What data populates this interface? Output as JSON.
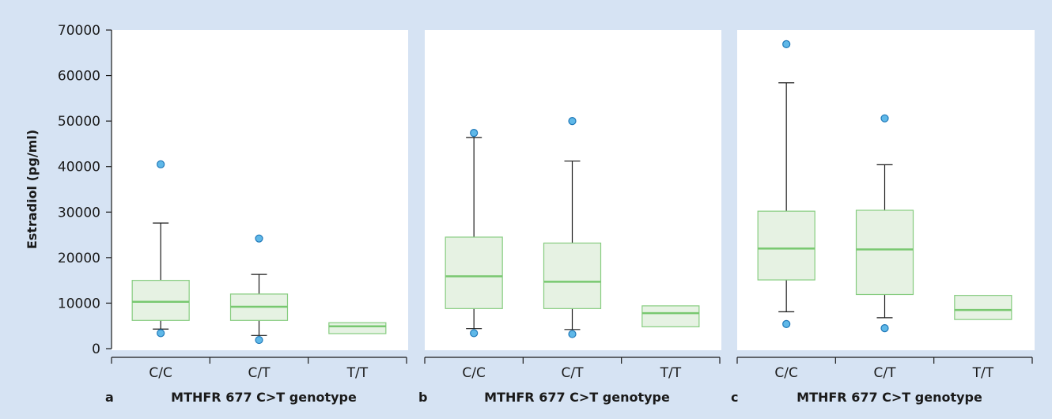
{
  "colors": {
    "background": "#d6e3f3",
    "panel": "#ffffff",
    "box_fill": "#e6f2e3",
    "box_stroke": "#86cc7f",
    "median": "#78c870",
    "whisker": "#1a1a1a",
    "outlier_fill": "#5fb8e8",
    "outlier_stroke": "#1f78b8"
  },
  "y_axis": {
    "label": "Estradiol (pg/ml)",
    "ticks": [
      0,
      10000,
      20000,
      30000,
      40000,
      50000,
      60000,
      70000
    ],
    "tick_labels": [
      "0",
      "10000",
      "20000",
      "30000",
      "40000",
      "50000",
      "60000",
      "70000"
    ],
    "ylim": [
      0,
      70000
    ]
  },
  "chart_data": [
    {
      "type": "boxplot",
      "panel": "a",
      "xlabel": "MTHFR 677 C>T genotype",
      "ylabel": "Estradiol (pg/ml)",
      "ylim": [
        0,
        70000
      ],
      "categories": [
        "C/C",
        "C/T",
        "T/T"
      ],
      "boxes": [
        {
          "category": "C/C",
          "whisker_low": 4300,
          "q1": 6200,
          "median": 10300,
          "q3": 15000,
          "whisker_high": 27600,
          "outliers": [
            40500,
            3400
          ]
        },
        {
          "category": "C/T",
          "whisker_low": 2900,
          "q1": 6200,
          "median": 9200,
          "q3": 12000,
          "whisker_high": 16300,
          "outliers": [
            24200,
            1900
          ]
        },
        {
          "category": "T/T",
          "whisker_low": null,
          "q1": 3300,
          "median": 4900,
          "q3": 5700,
          "whisker_high": null,
          "outliers": []
        }
      ]
    },
    {
      "type": "boxplot",
      "panel": "b",
      "xlabel": "MTHFR 677 C>T genotype",
      "ylabel": "",
      "ylim": [
        0,
        70000
      ],
      "categories": [
        "C/C",
        "C/T",
        "T/T"
      ],
      "boxes": [
        {
          "category": "C/C",
          "whisker_low": 4400,
          "q1": 8800,
          "median": 15900,
          "q3": 24500,
          "whisker_high": 46400,
          "outliers": [
            47400,
            3400
          ]
        },
        {
          "category": "C/T",
          "whisker_low": 4200,
          "q1": 8800,
          "median": 14700,
          "q3": 23200,
          "whisker_high": 41200,
          "outliers": [
            50000,
            3200
          ]
        },
        {
          "category": "T/T",
          "whisker_low": null,
          "q1": 4800,
          "median": 7800,
          "q3": 9400,
          "whisker_high": null,
          "outliers": []
        }
      ]
    },
    {
      "type": "boxplot",
      "panel": "c",
      "xlabel": "MTHFR 677 C>T genotype",
      "ylabel": "",
      "ylim": [
        0,
        70000
      ],
      "categories": [
        "C/C",
        "C/T",
        "T/T"
      ],
      "boxes": [
        {
          "category": "C/C",
          "whisker_low": 8100,
          "q1": 15100,
          "median": 22000,
          "q3": 30200,
          "whisker_high": 58400,
          "outliers": [
            66900,
            5400
          ]
        },
        {
          "category": "C/T",
          "whisker_low": 6800,
          "q1": 11900,
          "median": 21800,
          "q3": 30400,
          "whisker_high": 40400,
          "outliers": [
            50600,
            4500
          ]
        },
        {
          "category": "T/T",
          "whisker_low": null,
          "q1": 6400,
          "median": 8500,
          "q3": 11700,
          "whisker_high": null,
          "outliers": []
        }
      ]
    }
  ]
}
